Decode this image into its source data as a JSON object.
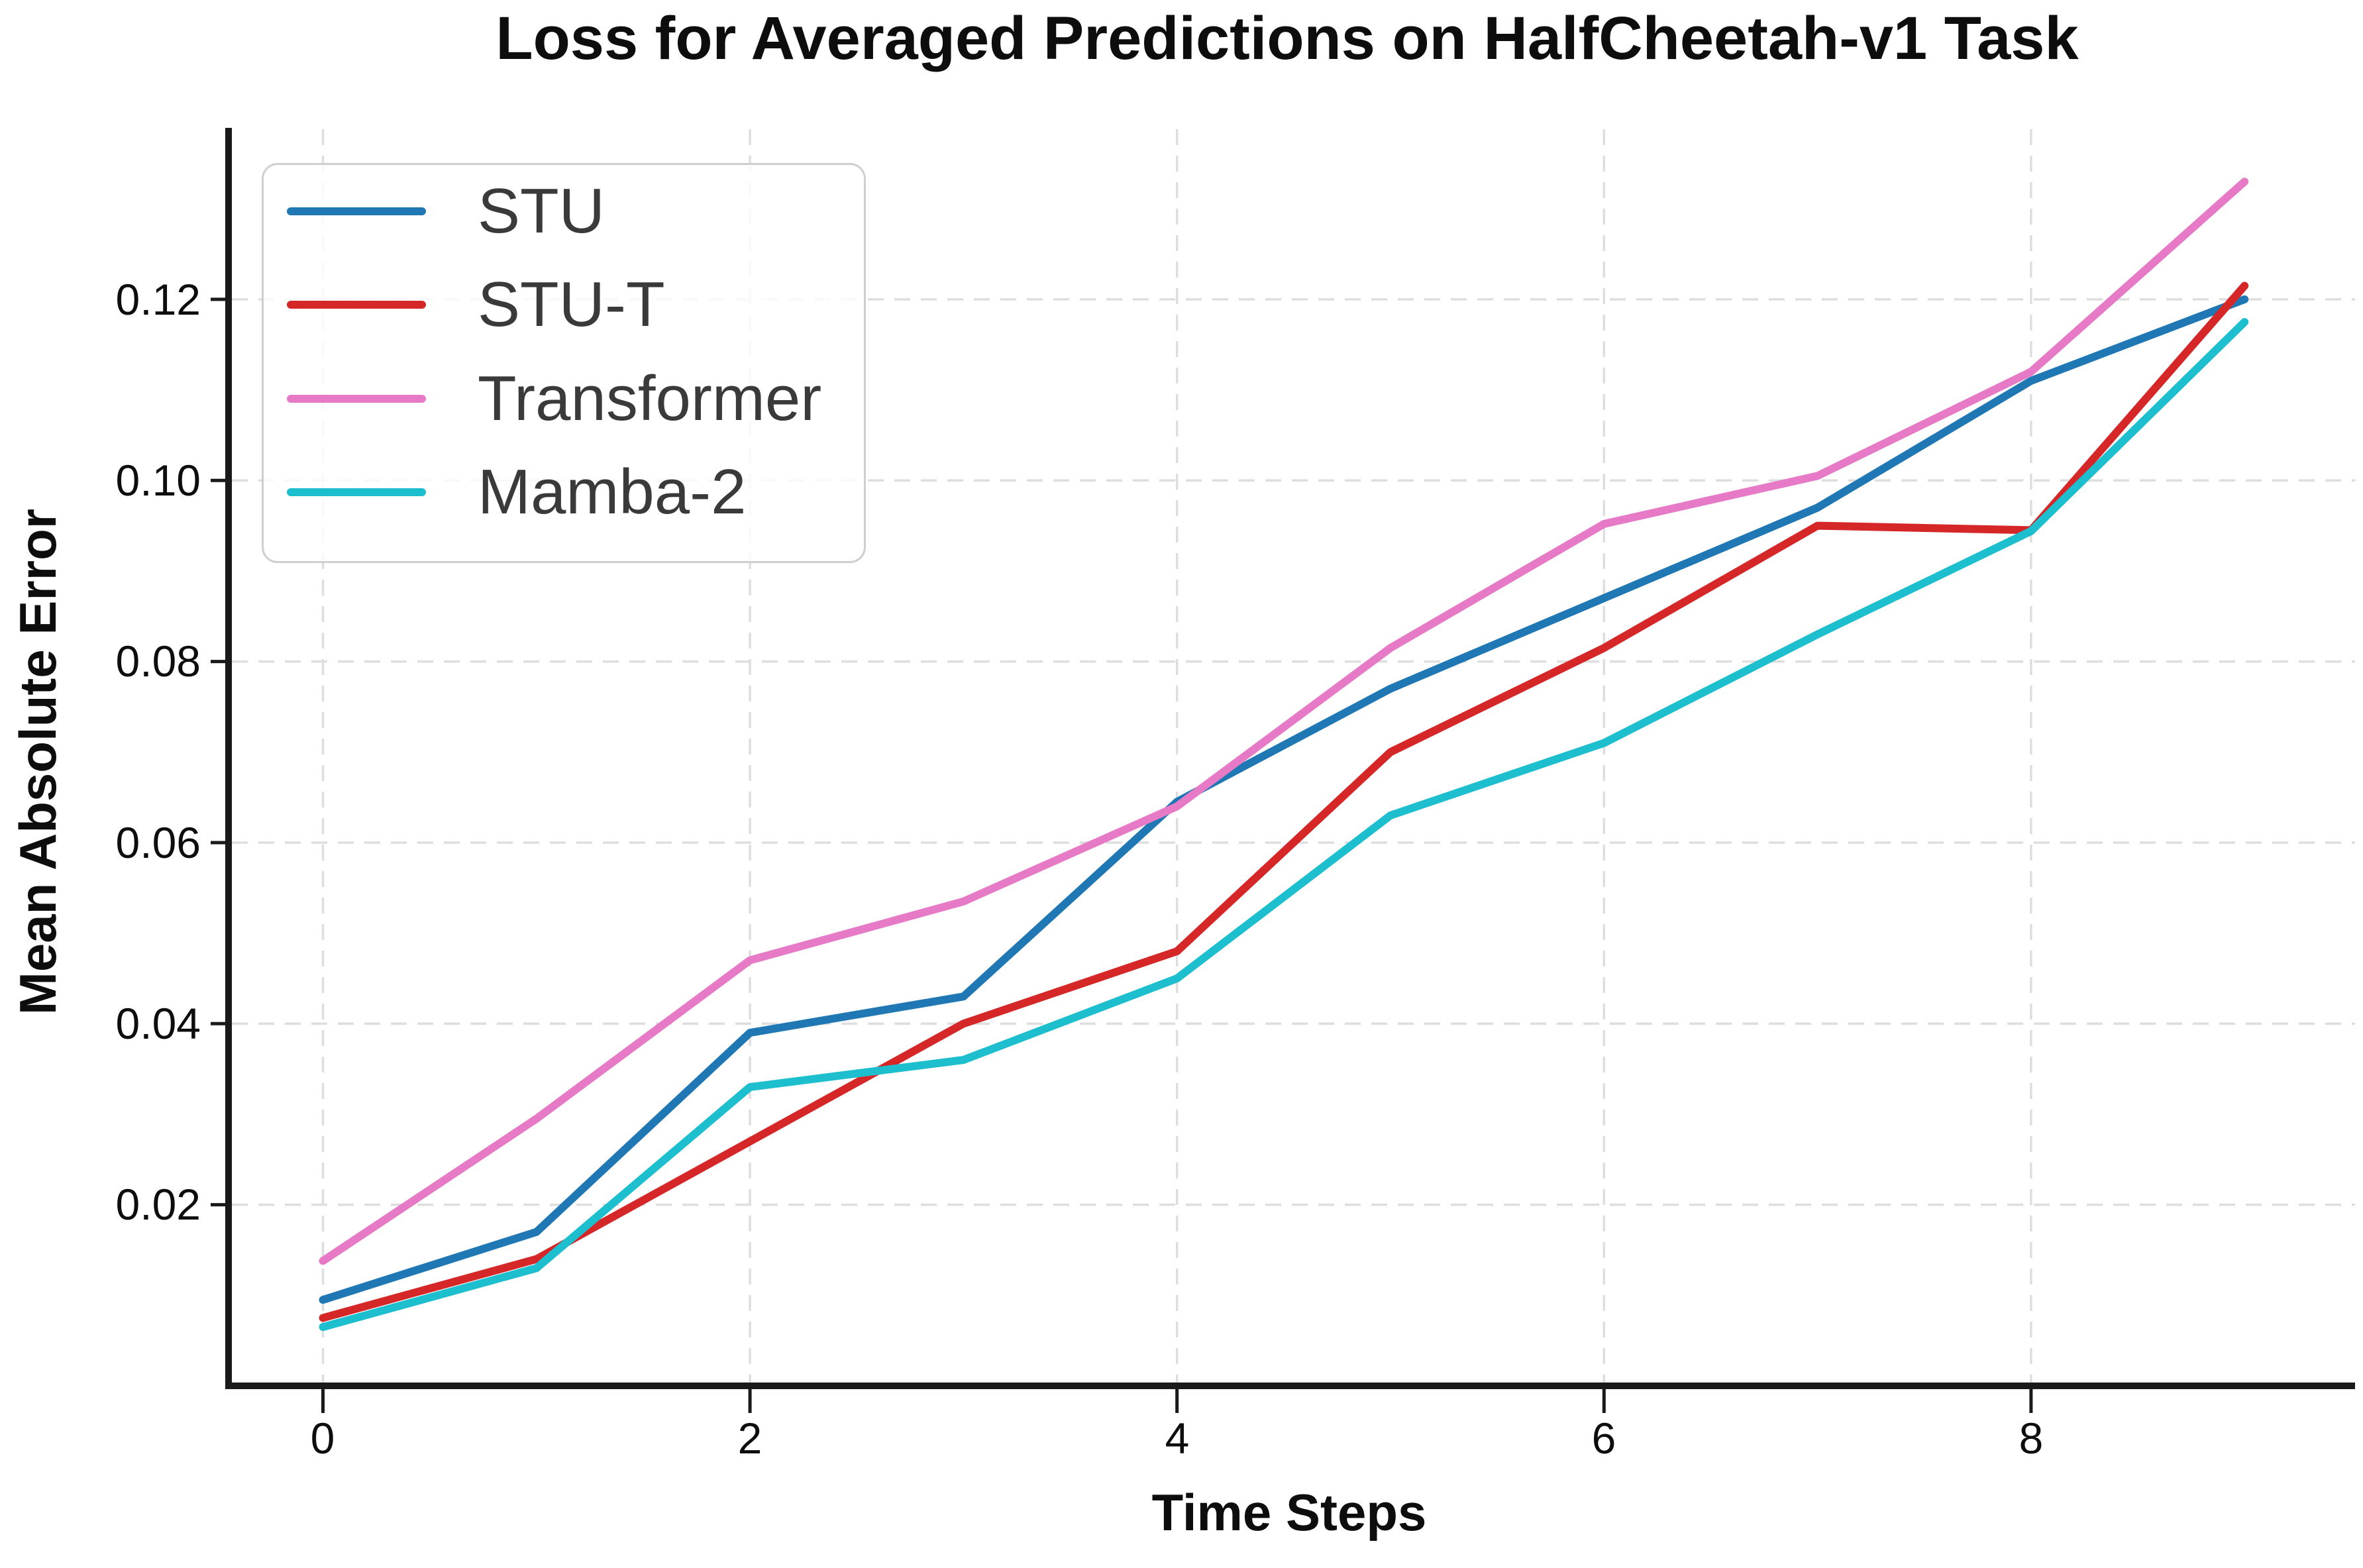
{
  "chart_data": {
    "type": "line",
    "title": "Loss for Averaged Predictions on HalfCheetah-v1 Task",
    "xlabel": "Time Steps",
    "ylabel": "Mean Absolute Error",
    "x": [
      0,
      1,
      2,
      3,
      4,
      5,
      6,
      7,
      8,
      9
    ],
    "x_ticks": [
      0,
      2,
      4,
      6,
      8
    ],
    "x_tick_labels": [
      "0",
      "2",
      "4",
      "6",
      "8"
    ],
    "y_ticks": [
      0.02,
      0.04,
      0.06,
      0.08,
      0.1,
      0.12
    ],
    "y_tick_labels": [
      "0.02",
      "0.04",
      "0.06",
      "0.08",
      "0.10",
      "0.12"
    ],
    "xlim": [
      -0.43,
      9.51
    ],
    "ylim": [
      0.0,
      0.1388
    ],
    "grid": true,
    "grid_style": "dashed",
    "legend_position": "upper left",
    "series": [
      {
        "name": "STU",
        "color": "#1f77b4",
        "values": [
          0.0095,
          0.017,
          0.039,
          0.043,
          0.0645,
          0.077,
          0.087,
          0.097,
          0.111,
          0.12
        ]
      },
      {
        "name": "STU-T",
        "color": "#d62728",
        "values": [
          0.0075,
          0.014,
          0.027,
          0.04,
          0.048,
          0.07,
          0.0815,
          0.095,
          0.0945,
          0.1215
        ]
      },
      {
        "name": "Transformer",
        "color": "#e67ac6",
        "values": [
          0.0138,
          0.0295,
          0.047,
          0.0535,
          0.064,
          0.0815,
          0.0952,
          0.1005,
          0.112,
          0.133
        ]
      },
      {
        "name": "Mamba-2",
        "color": "#1dbfcf",
        "values": [
          0.0065,
          0.013,
          0.033,
          0.036,
          0.045,
          0.063,
          0.071,
          0.083,
          0.0944,
          0.1175
        ]
      }
    ],
    "colors": {
      "grid": "#dedede",
      "spine": "#1a1a1a",
      "text": "#0d0d0d",
      "legend_text": "#3a3a3a"
    }
  }
}
